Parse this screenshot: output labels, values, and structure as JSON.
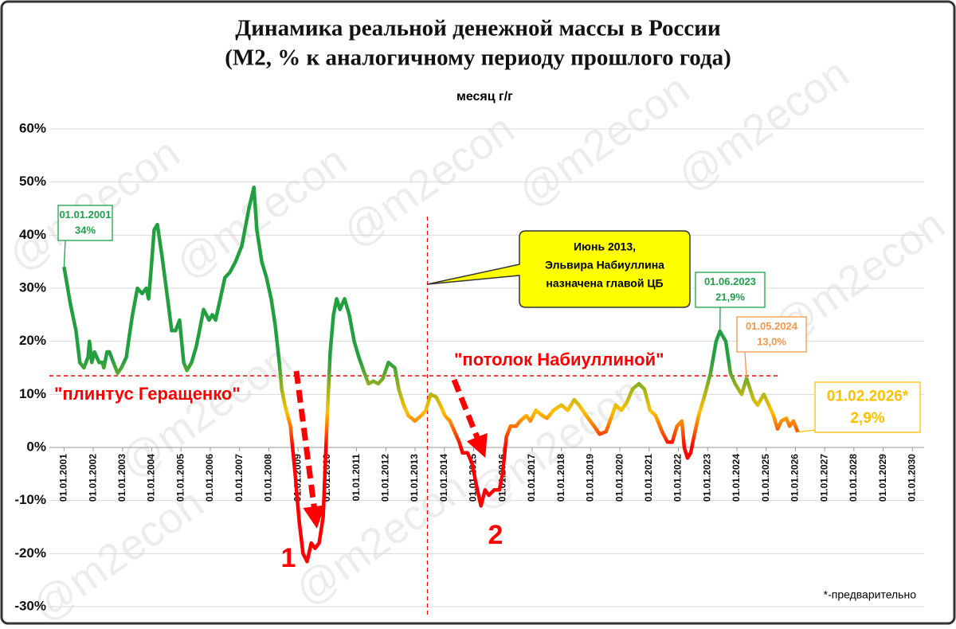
{
  "chart_data": {
    "type": "line",
    "title": [
      "Динамика реальной денежной массы в России",
      "(М2, % к аналогичному периоду прошлого года)"
    ],
    "watermark": "@m2econ",
    "footnote": "*-предварительно",
    "xlim": [
      2000.5,
      2030.4
    ],
    "ylim": [
      -30,
      60
    ],
    "yticks": [
      {
        "value": -30,
        "label": "-30%"
      },
      {
        "value": -20,
        "label": "-20%"
      },
      {
        "value": -10,
        "label": "-10%"
      },
      {
        "value": 0,
        "label": "0%"
      },
      {
        "value": 10,
        "label": "10%"
      },
      {
        "value": 20,
        "label": "20%"
      },
      {
        "value": 30,
        "label": "30%"
      },
      {
        "value": 40,
        "label": "40%"
      },
      {
        "value": 50,
        "label": "50%"
      },
      {
        "value": 60,
        "label": "60%"
      }
    ],
    "xticks": [
      {
        "value": 2001,
        "label": "01.01.2001"
      },
      {
        "value": 2002,
        "label": "01.01.2002"
      },
      {
        "value": 2003,
        "label": "01.01.2003"
      },
      {
        "value": 2004,
        "label": "01.01.2004"
      },
      {
        "value": 2005,
        "label": "01.01.2005"
      },
      {
        "value": 2006,
        "label": "01.01.2006"
      },
      {
        "value": 2007,
        "label": "01.01.2007"
      },
      {
        "value": 2008,
        "label": "01.01.2008"
      },
      {
        "value": 2009,
        "label": "01.01.2009"
      },
      {
        "value": 2010,
        "label": "01.01.2010"
      },
      {
        "value": 2011,
        "label": "01.01.2011"
      },
      {
        "value": 2012,
        "label": "01.01.2012"
      },
      {
        "value": 2013,
        "label": "01.01.2013"
      },
      {
        "value": 2014,
        "label": "01.01.2014"
      },
      {
        "value": 2015,
        "label": "01.01.2015"
      },
      {
        "value": 2016,
        "label": "01.01.2016"
      },
      {
        "value": 2017,
        "label": "01.01.2017"
      },
      {
        "value": 2018,
        "label": "01.01.2018"
      },
      {
        "value": 2019,
        "label": "01.01.2019"
      },
      {
        "value": 2020,
        "label": "01.01.2020"
      },
      {
        "value": 2021,
        "label": "01.01.2021"
      },
      {
        "value": 2022,
        "label": "01.01.2022"
      },
      {
        "value": 2023,
        "label": "01.01.2023"
      },
      {
        "value": 2024,
        "label": "01.01.2024"
      },
      {
        "value": 2025,
        "label": "01.01.2025"
      },
      {
        "value": 2026,
        "label": "01.01.2026"
      },
      {
        "value": 2027,
        "label": "01.01.2027"
      },
      {
        "value": 2028,
        "label": "01.01.2028"
      },
      {
        "value": 2029,
        "label": "01.01.2029"
      },
      {
        "value": 2030,
        "label": "01.01.2030"
      }
    ],
    "grid": true,
    "series": [
      {
        "name": "месяц г/г",
        "colors": [
          "#ff0000",
          "#ffc000",
          "#22a040"
        ],
        "x": [
          2001.0,
          2001.22,
          2001.41,
          2001.54,
          2001.68,
          2001.82,
          2001.87,
          2001.95,
          2002.04,
          2002.2,
          2002.31,
          2002.36,
          2002.47,
          2002.55,
          2002.69,
          2002.83,
          2002.96,
          2003.13,
          2003.23,
          2003.34,
          2003.51,
          2003.67,
          2003.81,
          2003.89,
          2003.97,
          2004.08,
          2004.19,
          2004.35,
          2004.54,
          2004.68,
          2004.81,
          2004.95,
          2005.09,
          2005.2,
          2005.36,
          2005.52,
          2005.63,
          2005.77,
          2005.96,
          2006.07,
          2006.18,
          2006.34,
          2006.5,
          2006.67,
          2006.86,
          2007.08,
          2007.32,
          2007.49,
          2007.59,
          2007.76,
          2007.92,
          2008.08,
          2008.22,
          2008.36,
          2008.44,
          2008.55,
          2008.74,
          2008.9,
          2009.04,
          2009.17,
          2009.31,
          2009.45,
          2009.58,
          2009.72,
          2009.86,
          2009.99,
          2010.1,
          2010.21,
          2010.32,
          2010.43,
          2010.59,
          2010.75,
          2010.92,
          2011.08,
          2011.27,
          2011.41,
          2011.57,
          2011.74,
          2011.9,
          2012.09,
          2012.31,
          2012.44,
          2012.61,
          2012.77,
          2012.99,
          2013.21,
          2013.37,
          2013.53,
          2013.72,
          2013.86,
          2014.02,
          2014.19,
          2014.35,
          2014.51,
          2014.62,
          2014.79,
          2014.95,
          2015.09,
          2015.25,
          2015.39,
          2015.52,
          2015.71,
          2015.88,
          2015.99,
          2016.12,
          2016.26,
          2016.45,
          2016.59,
          2016.8,
          2016.94,
          2017.13,
          2017.35,
          2017.51,
          2017.73,
          2018.0,
          2018.22,
          2018.44,
          2018.6,
          2018.85,
          2019.12,
          2019.31,
          2019.53,
          2019.66,
          2019.86,
          2020.05,
          2020.24,
          2020.43,
          2020.65,
          2020.84,
          2021.03,
          2021.22,
          2021.44,
          2021.63,
          2021.79,
          2021.95,
          2022.12,
          2022.2,
          2022.31,
          2022.42,
          2022.53,
          2022.69,
          2022.91,
          2023.1,
          2023.29,
          2023.42,
          2023.62,
          2023.78,
          2023.94,
          2024.16,
          2024.33,
          2024.57,
          2024.71,
          2024.92,
          2025.09,
          2025.25,
          2025.39,
          2025.52,
          2025.69,
          2025.8,
          2025.93,
          2026.08
        ],
        "values": [
          34,
          27,
          22,
          16,
          15,
          17,
          20,
          16,
          18,
          16,
          16,
          15,
          18,
          18,
          16,
          14,
          15,
          17,
          21,
          25,
          30,
          29,
          30,
          28,
          33,
          41,
          42,
          36,
          28,
          22,
          22,
          24,
          16,
          14.5,
          16,
          19,
          22,
          26,
          24,
          25,
          24,
          28,
          32,
          33,
          35,
          38,
          45,
          49,
          41,
          35,
          32,
          28,
          23,
          16,
          11,
          8,
          4,
          -5,
          -14,
          -20,
          -21.5,
          -18,
          -19,
          -18,
          -13,
          5,
          18,
          25,
          28,
          26,
          28,
          25,
          20,
          17,
          14,
          12,
          12.5,
          12,
          13,
          16,
          15,
          11,
          8,
          6,
          5,
          6,
          7,
          10,
          9.5,
          8,
          6,
          5,
          3,
          1,
          -1,
          -1,
          -3,
          -7,
          -11,
          -8,
          -9,
          -8,
          -8,
          -5,
          2,
          4,
          4,
          5,
          6,
          5,
          7,
          6,
          5.5,
          7,
          8,
          7,
          9,
          8,
          6,
          4,
          2.5,
          3,
          5,
          8,
          7,
          8.5,
          11,
          12,
          11,
          7,
          6,
          3,
          1,
          1,
          4,
          5,
          0,
          -2,
          -1,
          2,
          6,
          10,
          14,
          20,
          21.9,
          20,
          14,
          12,
          10,
          13,
          9,
          8,
          10,
          8,
          6,
          3.5,
          5,
          5.5,
          4,
          5,
          2.9
        ]
      }
    ],
    "reference_line": {
      "value": 13.5,
      "to": 2025.5,
      "labels": [
        "\"плинтус Геращенко\"",
        "\"потолок Набиуллиной\""
      ],
      "color": "#ff0000"
    },
    "vline": {
      "x": 2013.42,
      "text": [
        "Июнь 2013,",
        "Эльвира Набиуллина",
        "назначена главой ЦБ"
      ],
      "fill": "#ffff00"
    },
    "arrows": [
      "1",
      "2"
    ],
    "callouts": [
      {
        "x": 2001.0,
        "value": 34,
        "date": "01.01.2001",
        "value_label": "34%",
        "color": "#1ea04a"
      },
      {
        "x": 2023.42,
        "value": 21.9,
        "date": "01.06.2023",
        "value_label": "21,9%",
        "color": "#1ea04a"
      },
      {
        "x": 2024.33,
        "value": 13,
        "date": "01.05.2024",
        "value_label": "13,0%",
        "color": "#f79646"
      },
      {
        "x": 2026.08,
        "value": 2.9,
        "date": "01.02.2026*",
        "value_label": "2,9%",
        "color": "#ffc000"
      }
    ]
  }
}
